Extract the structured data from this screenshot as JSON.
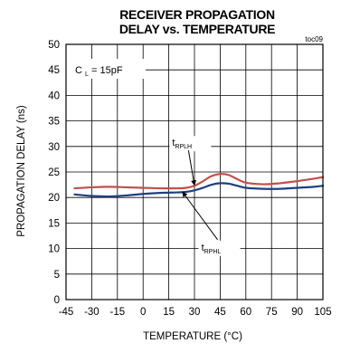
{
  "chart_data": {
    "type": "line",
    "title": "RECEIVER PROPAGATION",
    "subtitle": "DELAY vs. TEMPERATURE",
    "figure_code": "toc09",
    "xlabel": "TEMPERATURE (°C)",
    "ylabel": "PROPAGATION DELAY (ns)",
    "xlim": [
      -45,
      105
    ],
    "ylim": [
      0,
      50
    ],
    "x_ticks": [
      -45,
      -30,
      -15,
      0,
      15,
      30,
      45,
      60,
      75,
      90,
      105
    ],
    "y_ticks": [
      0,
      5,
      10,
      15,
      20,
      25,
      30,
      35,
      40,
      45,
      50
    ],
    "grid": true,
    "legend": "none",
    "condition_label": {
      "main": "C",
      "sub": "L",
      "rest": " = 15pF"
    },
    "series": [
      {
        "name": "tRPLH",
        "label_main": "t",
        "label_sub": "RPLH",
        "color": "#c0504d",
        "x": [
          -40,
          -30,
          -20,
          -10,
          0,
          10,
          20,
          25,
          30,
          35,
          40,
          45,
          50,
          55,
          60,
          70,
          80,
          90,
          100,
          105
        ],
        "y": [
          21.8,
          22.0,
          22.1,
          22.0,
          21.9,
          21.8,
          21.8,
          21.9,
          22.3,
          23.2,
          24.2,
          24.6,
          24.4,
          23.6,
          22.9,
          22.6,
          22.8,
          23.2,
          23.7,
          24.0
        ]
      },
      {
        "name": "tRPHL",
        "label_main": "t",
        "label_sub": "RPHL",
        "color": "#1f3f7f",
        "x": [
          -40,
          -30,
          -20,
          -10,
          0,
          10,
          20,
          25,
          30,
          35,
          40,
          45,
          50,
          55,
          60,
          70,
          80,
          90,
          100,
          105
        ],
        "y": [
          20.6,
          20.3,
          20.2,
          20.4,
          20.7,
          20.9,
          21.0,
          21.1,
          21.4,
          21.9,
          22.5,
          22.8,
          22.7,
          22.3,
          21.9,
          21.7,
          21.7,
          21.9,
          22.1,
          22.3
        ]
      }
    ],
    "annotations": [
      {
        "series": "tRPLH",
        "text_x": 17,
        "text_y": 30.1,
        "arrow_to_x": 30,
        "arrow_to_y": 22.4
      },
      {
        "series": "tRPHL",
        "text_x": 34,
        "text_y": 9.6,
        "arrow_to_x": 23,
        "arrow_to_y": 21.1
      }
    ]
  }
}
